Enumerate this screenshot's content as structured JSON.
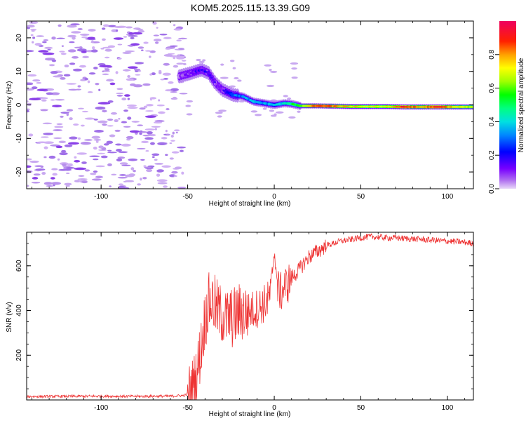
{
  "title": "KOM5.2025.115.13.39.G09",
  "colors": {
    "snr_line": "#ee3333",
    "axis": "#000000",
    "noise": "#c8a8f0"
  },
  "chart_data": [
    {
      "type": "heatmap",
      "xlabel": "Height of straight line (km)",
      "ylabel": "Frequency (Hz)",
      "xlim": [
        -143,
        115
      ],
      "ylim": [
        -25,
        25
      ],
      "xticks": [
        -100,
        -50,
        0,
        50,
        100
      ],
      "yticks": [
        -20,
        -10,
        0,
        10,
        20
      ],
      "colorbar": {
        "label": "Normalized spectral amplitude",
        "range": [
          0.0,
          1.0
        ],
        "ticks": [
          0.0,
          0.2,
          0.4,
          0.6,
          0.8
        ],
        "colormap": "rainbow"
      },
      "ridge": [
        {
          "x": -55,
          "y": 8.5,
          "amp": 0.08
        },
        {
          "x": -48,
          "y": 9.5,
          "amp": 0.12
        },
        {
          "x": -42,
          "y": 10.5,
          "amp": 0.18
        },
        {
          "x": -38,
          "y": 9.5,
          "amp": 0.15
        },
        {
          "x": -34,
          "y": 6.5,
          "amp": 0.12
        },
        {
          "x": -30,
          "y": 4.5,
          "amp": 0.14
        },
        {
          "x": -24,
          "y": 3,
          "amp": 0.3
        },
        {
          "x": -18,
          "y": 2.5,
          "amp": 0.32
        },
        {
          "x": -12,
          "y": 1,
          "amp": 0.35
        },
        {
          "x": -6,
          "y": 0.5,
          "amp": 0.34
        },
        {
          "x": 0,
          "y": 0,
          "amp": 0.38
        },
        {
          "x": 6,
          "y": 0.5,
          "amp": 0.4
        },
        {
          "x": 10,
          "y": 0.3,
          "amp": 0.5
        },
        {
          "x": 15,
          "y": -0.3,
          "amp": 0.6
        },
        {
          "x": 25,
          "y": -0.3,
          "amp": 0.88
        },
        {
          "x": 35,
          "y": -0.4,
          "amp": 0.82
        },
        {
          "x": 45,
          "y": -0.5,
          "amp": 0.74
        },
        {
          "x": 55,
          "y": -0.5,
          "amp": 0.7
        },
        {
          "x": 65,
          "y": -0.5,
          "amp": 0.72
        },
        {
          "x": 75,
          "y": -0.6,
          "amp": 0.9
        },
        {
          "x": 85,
          "y": -0.6,
          "amp": 0.78
        },
        {
          "x": 95,
          "y": -0.6,
          "amp": 0.92
        },
        {
          "x": 105,
          "y": -0.6,
          "amp": 0.72
        },
        {
          "x": 115,
          "y": -0.6,
          "amp": 0.65
        }
      ]
    },
    {
      "type": "line",
      "xlabel": "Height of straight line (km)",
      "ylabel": "SNR (v/v)",
      "xlim": [
        -143,
        115
      ],
      "ylim": [
        0,
        750
      ],
      "xticks": [
        -100,
        -50,
        0,
        50,
        100
      ],
      "yticks": [
        200,
        400,
        600
      ],
      "series": [
        {
          "x": [
            -143,
            -120,
            -100,
            -80,
            -60,
            -52,
            -48,
            -46,
            -44,
            -42,
            -40,
            -38,
            -36,
            -34,
            -32,
            -30,
            -28,
            -26,
            -24,
            -22,
            -20,
            -18,
            -16,
            -14,
            -12,
            -10,
            -8,
            -6,
            -4,
            -2,
            0,
            2,
            4,
            6,
            8,
            10,
            12,
            14,
            16,
            18,
            20,
            22,
            24,
            26,
            28,
            30,
            34,
            38,
            42,
            46,
            50,
            55,
            60,
            65,
            70,
            75,
            80,
            85,
            90,
            95,
            100,
            105,
            110,
            115
          ],
          "y": [
            15,
            16,
            17,
            16,
            17,
            20,
            35,
            80,
            150,
            250,
            360,
            430,
            440,
            420,
            390,
            380,
            360,
            370,
            365,
            380,
            390,
            395,
            390,
            395,
            405,
            410,
            420,
            430,
            440,
            480,
            620,
            500,
            480,
            510,
            520,
            550,
            560,
            580,
            600,
            620,
            640,
            650,
            660,
            670,
            680,
            690,
            700,
            710,
            715,
            720,
            725,
            730,
            728,
            725,
            725,
            722,
            720,
            718,
            715,
            712,
            710,
            708,
            705,
            700
          ]
        }
      ]
    }
  ]
}
